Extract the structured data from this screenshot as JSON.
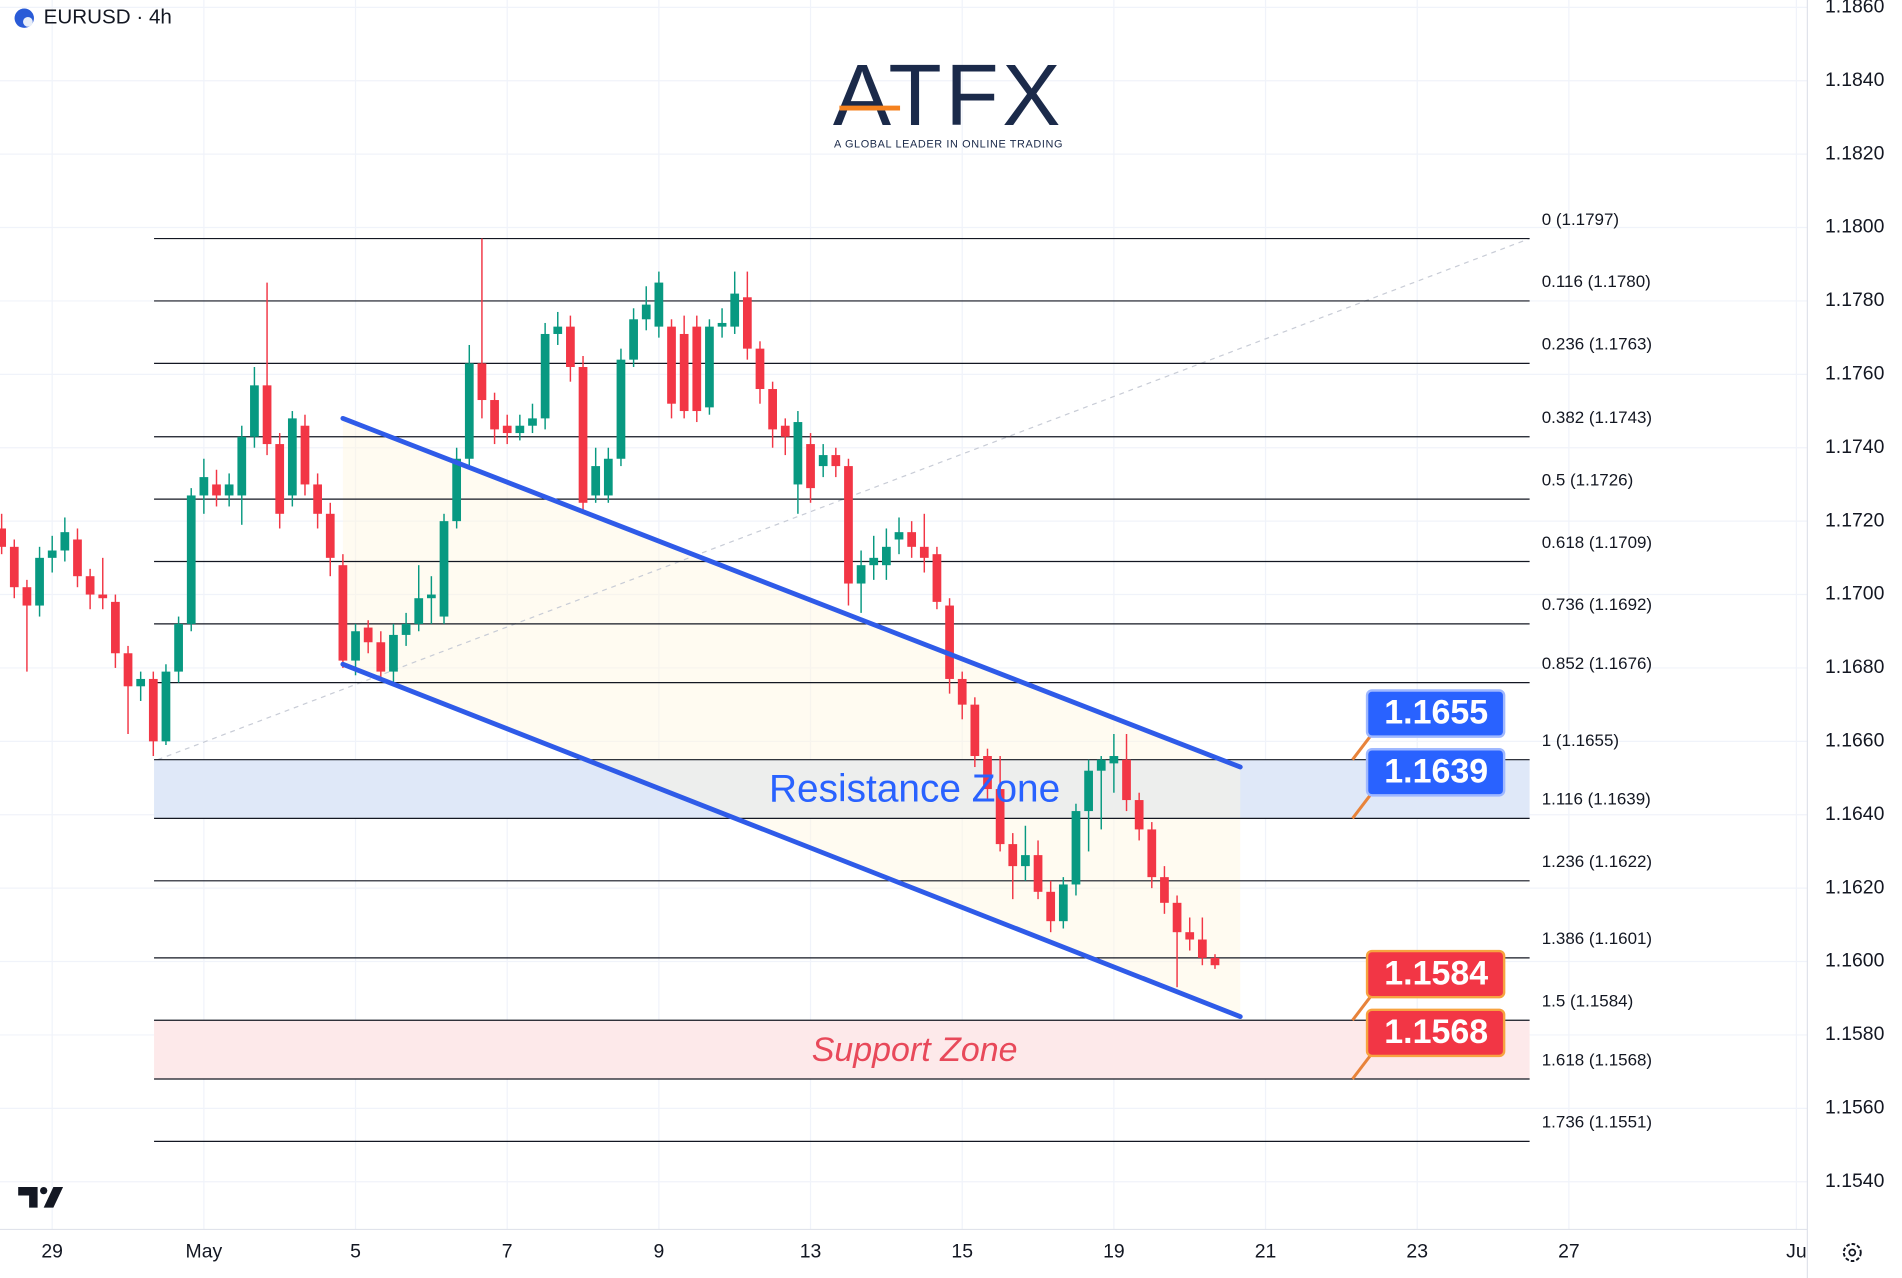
{
  "chart_data": {
    "type": "candlestick",
    "symbol": "EURUSD · 4h",
    "logo": {
      "name": "ATFX",
      "tagline": "A GLOBAL LEADER IN ONLINE TRADING"
    },
    "categories": [
      null,
      null,
      null,
      null,
      null,
      null,
      null,
      null,
      null,
      null,
      null,
      null,
      null,
      null,
      null,
      null,
      null,
      null,
      null,
      null,
      null,
      null,
      null,
      null,
      null,
      null,
      null,
      null,
      null,
      null,
      null,
      null,
      null,
      null,
      null,
      null,
      null,
      null,
      null,
      null,
      null,
      null,
      null,
      null,
      null,
      null,
      null,
      null,
      null,
      null,
      null,
      null,
      null,
      null,
      null,
      null,
      null,
      null,
      null,
      null,
      null,
      null,
      null,
      null,
      null,
      null,
      null,
      null,
      null,
      null,
      null,
      null,
      null,
      null,
      null,
      null,
      null,
      null,
      null,
      null,
      null,
      null,
      null,
      null,
      null,
      null,
      null,
      null,
      null,
      null,
      null,
      null,
      null,
      null,
      null,
      null,
      null
    ],
    "open": [
      1.1718,
      1.1713,
      1.1702,
      1.1697,
      1.171,
      1.1712,
      1.1715,
      1.1705,
      1.17,
      1.1698,
      1.1684,
      1.1675,
      1.1677,
      1.166,
      1.1679,
      1.1692,
      1.1727,
      1.173,
      1.1727,
      1.1727,
      1.1743,
      1.1757,
      1.1741,
      1.1727,
      1.1746,
      1.173,
      1.1722,
      1.1708,
      1.1682,
      1.1691,
      1.1687,
      1.1679,
      1.1689,
      1.1692,
      1.1699,
      1.1694,
      1.172,
      1.1737,
      1.1763,
      1.1753,
      1.1746,
      1.1744,
      1.1746,
      1.1748,
      1.1771,
      1.1773,
      1.1762,
      1.1727,
      1.1727,
      1.1737,
      1.1764,
      1.1775,
      1.1773,
      1.1773,
      1.1771,
      1.1773,
      1.1751,
      1.1773,
      1.1773,
      1.1781,
      1.1767,
      1.1756,
      1.1746,
      1.173,
      1.1741,
      1.1735,
      1.1738,
      1.1735,
      1.1703,
      1.1708,
      1.1708,
      1.1715,
      1.1717,
      1.1713,
      1.1711,
      1.1697,
      1.1677,
      1.167,
      1.1656,
      1.1647,
      1.1632,
      1.1626,
      1.1629,
      1.1619,
      1.1611,
      1.1621,
      1.1641,
      1.1652,
      1.1654,
      1.1655,
      1.1644,
      1.1636,
      1.1623,
      1.1616,
      1.1608,
      1.1606,
      1.1601
    ],
    "high": [
      1.1722,
      1.1715,
      1.1704,
      1.1713,
      1.1716,
      1.1721,
      1.1718,
      1.1707,
      1.171,
      1.17,
      1.1686,
      1.1679,
      1.1679,
      1.1681,
      1.1694,
      1.1729,
      1.1737,
      1.1734,
      1.1733,
      1.1746,
      1.1762,
      1.1785,
      1.1744,
      1.175,
      1.1749,
      1.1733,
      1.1725,
      1.1711,
      1.1692,
      1.1693,
      1.169,
      1.1692,
      1.1695,
      1.1708,
      1.1705,
      1.1722,
      1.174,
      1.1768,
      1.1797,
      1.1755,
      1.1749,
      1.1749,
      1.1752,
      1.1774,
      1.1777,
      1.1776,
      1.1765,
      1.174,
      1.174,
      1.1767,
      1.1778,
      1.1784,
      1.1788,
      1.1775,
      1.1776,
      1.1776,
      1.1775,
      1.1778,
      1.1788,
      1.1788,
      1.1769,
      1.1758,
      1.1748,
      1.175,
      1.1744,
      1.1741,
      1.174,
      1.1737,
      1.1712,
      1.1716,
      1.1718,
      1.1721,
      1.172,
      1.1722,
      1.1713,
      1.1699,
      1.1679,
      1.1672,
      1.1658,
      1.1656,
      1.1635,
      1.1637,
      1.1633,
      1.1622,
      1.1623,
      1.1643,
      1.1655,
      1.1656,
      1.1662,
      1.1662,
      1.1646,
      1.1638,
      1.1626,
      1.1618,
      1.1612,
      1.1612,
      1.1602
    ],
    "low": [
      1.1711,
      1.1699,
      1.1679,
      1.1694,
      1.1706,
      1.1709,
      1.1702,
      1.1696,
      1.1696,
      1.168,
      1.1662,
      1.1671,
      1.1656,
      1.1659,
      1.1676,
      1.169,
      1.1722,
      1.1724,
      1.1724,
      1.1719,
      1.174,
      1.1738,
      1.1718,
      1.1724,
      1.1727,
      1.1718,
      1.1705,
      1.168,
      1.1678,
      1.1684,
      1.1677,
      1.1676,
      1.1686,
      1.169,
      1.1692,
      1.1692,
      1.1718,
      1.1735,
      1.1748,
      1.1741,
      1.1741,
      1.1742,
      1.1744,
      1.1745,
      1.1768,
      1.1758,
      1.1722,
      1.1725,
      1.1725,
      1.1735,
      1.1762,
      1.1772,
      1.177,
      1.1748,
      1.1748,
      1.1747,
      1.1749,
      1.177,
      1.1771,
      1.1764,
      1.1752,
      1.174,
      1.1738,
      1.1722,
      1.1725,
      1.1732,
      1.1732,
      1.1697,
      1.1695,
      1.1704,
      1.1704,
      1.1711,
      1.171,
      1.1706,
      1.1696,
      1.1673,
      1.1666,
      1.1653,
      1.1644,
      1.163,
      1.1617,
      1.1622,
      1.1617,
      1.1608,
      1.1609,
      1.1618,
      1.163,
      1.1636,
      1.1646,
      1.1641,
      1.1633,
      1.162,
      1.1613,
      1.1593,
      1.1603,
      1.1599,
      1.1598
    ],
    "close": [
      1.1713,
      1.1702,
      1.1697,
      1.171,
      1.1712,
      1.1717,
      1.1705,
      1.17,
      1.1699,
      1.1684,
      1.1675,
      1.1677,
      1.166,
      1.1679,
      1.1692,
      1.1727,
      1.1732,
      1.1727,
      1.173,
      1.1743,
      1.1757,
      1.1741,
      1.1722,
      1.1748,
      1.173,
      1.1722,
      1.171,
      1.1682,
      1.169,
      1.1687,
      1.1679,
      1.1689,
      1.1692,
      1.1699,
      1.17,
      1.172,
      1.1737,
      1.1763,
      1.1753,
      1.1745,
      1.1744,
      1.1746,
      1.1748,
      1.1771,
      1.1773,
      1.1762,
      1.1725,
      1.1735,
      1.1737,
      1.1764,
      1.1775,
      1.1779,
      1.1785,
      1.1752,
      1.175,
      1.175,
      1.1773,
      1.1774,
      1.1782,
      1.1767,
      1.1756,
      1.1745,
      1.1743,
      1.1747,
      1.1729,
      1.1738,
      1.1735,
      1.1703,
      1.1708,
      1.171,
      1.1713,
      1.1717,
      1.1713,
      1.171,
      1.1698,
      1.1677,
      1.167,
      1.1656,
      1.1647,
      1.1632,
      1.1626,
      1.1629,
      1.1619,
      1.1611,
      1.1621,
      1.1641,
      1.1652,
      1.1655,
      1.1656,
      1.1644,
      1.1636,
      1.1623,
      1.1616,
      1.1608,
      1.1606,
      1.1601,
      1.1599
    ],
    "up_color": "#089981",
    "down_color": "#f23645",
    "xlim": [
      -0.13,
      142.87
    ],
    "xticks": [
      {
        "value": 4,
        "label": "29"
      },
      {
        "value": 16,
        "label": "May"
      },
      {
        "value": 28,
        "label": "5"
      },
      {
        "value": 40,
        "label": "7"
      },
      {
        "value": 52,
        "label": "9"
      },
      {
        "value": 64,
        "label": "13"
      },
      {
        "value": 76,
        "label": "15"
      },
      {
        "value": 88,
        "label": "19"
      },
      {
        "value": 100,
        "label": "21"
      },
      {
        "value": 112,
        "label": "23"
      },
      {
        "value": 124,
        "label": "27"
      },
      {
        "value": 142,
        "label": "Ju"
      }
    ],
    "ylim": [
      1.1527,
      1.1862
    ],
    "yticks": [
      {
        "value": 1.154,
        "label": "1.1540"
      },
      {
        "value": 1.156,
        "label": "1.1560"
      },
      {
        "value": 1.158,
        "label": "1.1580"
      },
      {
        "value": 1.16,
        "label": "1.1600"
      },
      {
        "value": 1.162,
        "label": "1.1620"
      },
      {
        "value": 1.164,
        "label": "1.1640"
      },
      {
        "value": 1.166,
        "label": "1.1660"
      },
      {
        "value": 1.168,
        "label": "1.1680"
      },
      {
        "value": 1.17,
        "label": "1.1700"
      },
      {
        "value": 1.172,
        "label": "1.1720"
      },
      {
        "value": 1.174,
        "label": "1.1740"
      },
      {
        "value": 1.176,
        "label": "1.1760"
      },
      {
        "value": 1.178,
        "label": "1.1780"
      },
      {
        "value": 1.18,
        "label": "1.1800"
      },
      {
        "value": 1.182,
        "label": "1.1820"
      },
      {
        "value": 1.184,
        "label": "1.1840"
      },
      {
        "value": 1.186,
        "label": "1.1860"
      }
    ],
    "grid": true,
    "fib_levels": [
      {
        "label": "0 (1.1797)",
        "value": 1.1797
      },
      {
        "label": "0.116 (1.1780)",
        "value": 1.178
      },
      {
        "label": "0.236 (1.1763)",
        "value": 1.1763
      },
      {
        "label": "0.382 (1.1743)",
        "value": 1.1743
      },
      {
        "label": "0.5 (1.1726)",
        "value": 1.1726
      },
      {
        "label": "0.618 (1.1709)",
        "value": 1.1709
      },
      {
        "label": "0.736 (1.1692)",
        "value": 1.1692
      },
      {
        "label": "0.852 (1.1676)",
        "value": 1.1676
      },
      {
        "label": "1 (1.1655)",
        "value": 1.1655
      },
      {
        "label": "1.116 (1.1639)",
        "value": 1.1639
      },
      {
        "label": "1.236 (1.1622)",
        "value": 1.1622
      },
      {
        "label": "1.386 (1.1601)",
        "value": 1.1601
      },
      {
        "label": "1.5 (1.1584)",
        "value": 1.1584
      },
      {
        "label": "1.618 (1.1568)",
        "value": 1.1568
      },
      {
        "label": "1.736 (1.1551)",
        "value": 1.1551
      }
    ],
    "zones": [
      {
        "label": "Resistance Zone",
        "top": 1.1655,
        "bottom": 1.1639,
        "color": "#2962ff",
        "fill": "#dfe8f8"
      },
      {
        "label": "Support Zone",
        "top": 1.1584,
        "bottom": 1.1568,
        "color": "#e8495a",
        "fill": "#fde9ea"
      }
    ],
    "trendlines": [
      {
        "x": [
          27,
          98
        ],
        "y": [
          1.1748,
          1.1653
        ],
        "color": "#2f5be8"
      },
      {
        "x": [
          27,
          98
        ],
        "y": [
          1.1681,
          1.1585
        ],
        "color": "#2f5be8"
      }
    ],
    "price_tags": [
      {
        "label": "1.1655",
        "value": 1.1655,
        "color": "#2962ff"
      },
      {
        "label": "1.1639",
        "value": 1.1639,
        "color": "#2962ff"
      },
      {
        "label": "1.1584",
        "value": 1.1584,
        "color": "#f23645"
      },
      {
        "label": "1.1568",
        "value": 1.1568,
        "color": "#f23645"
      }
    ]
  }
}
